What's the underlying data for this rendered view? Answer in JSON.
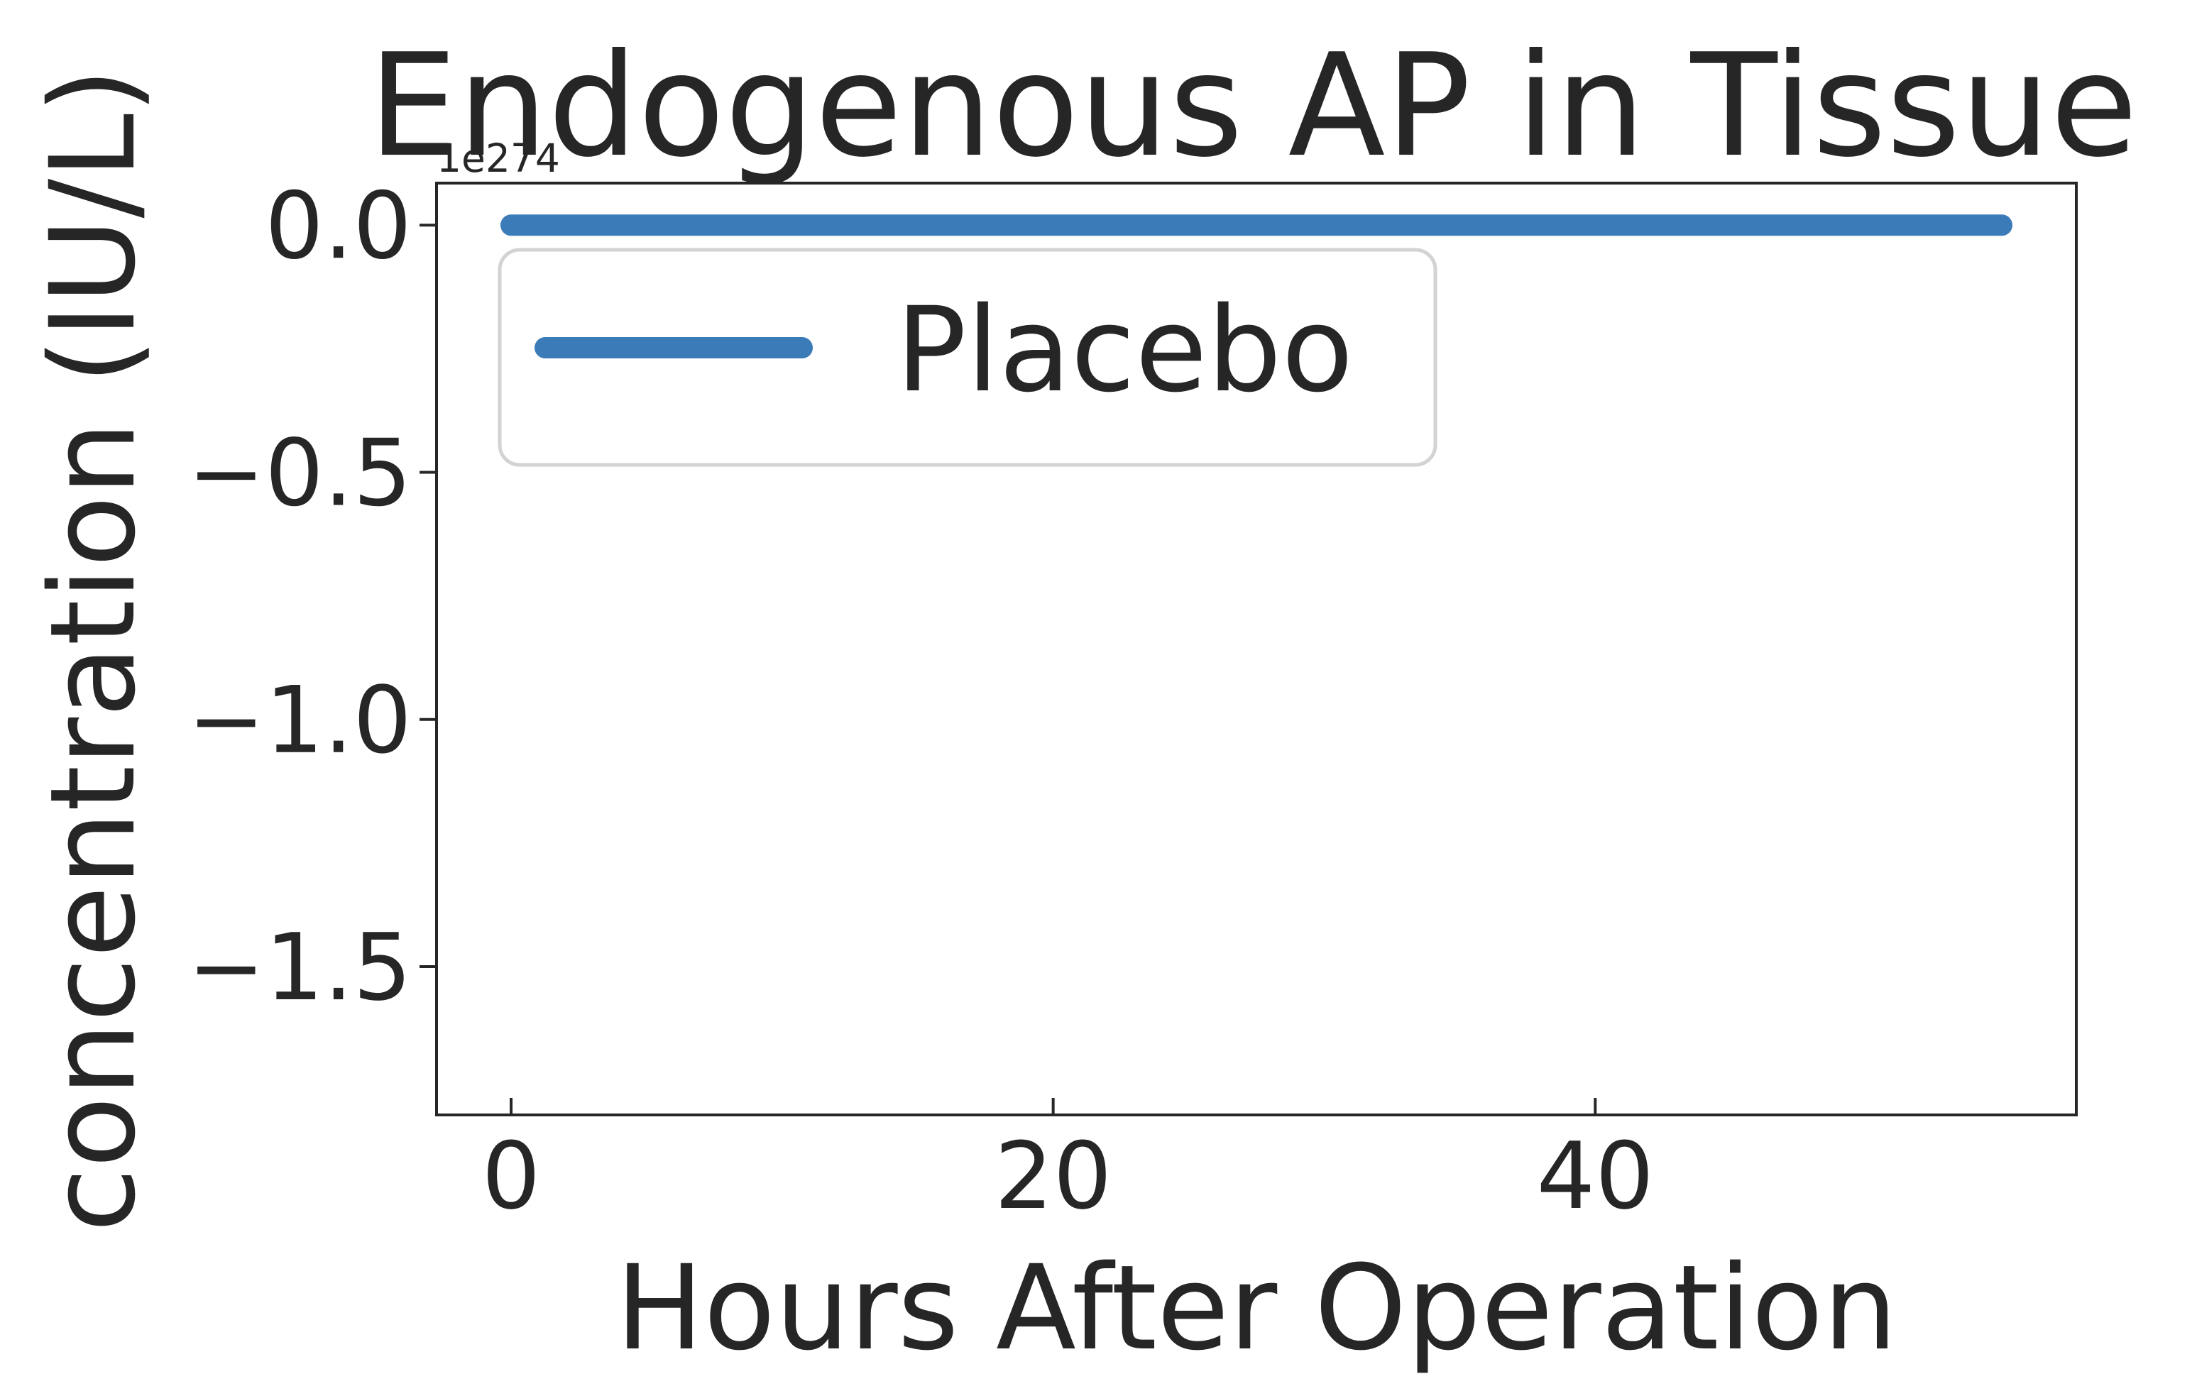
{
  "chart_data": {
    "type": "line",
    "title": "Endogenous AP in Tissue",
    "xlabel": "Hours After Operation",
    "ylabel": "concentration (IU/L)",
    "y_offset_text": "1e274",
    "x": [
      0,
      55
    ],
    "series": [
      {
        "name": "Placebo",
        "y": [
          0.0,
          0.0
        ],
        "color": "#3a7bb8"
      }
    ],
    "x_ticks": [
      0,
      20,
      40
    ],
    "x_tick_labels": [
      "0",
      "20",
      "40"
    ],
    "y_ticks": [
      0.0,
      -0.5,
      -1.0,
      -1.5
    ],
    "y_tick_labels": [
      "0.0",
      "−0.5",
      "−1.0",
      "−1.5"
    ],
    "xlim": [
      -2.75,
      57.75
    ],
    "ylim": [
      -1.8,
      0.085
    ],
    "grid": false,
    "legend_position": "top-left"
  }
}
